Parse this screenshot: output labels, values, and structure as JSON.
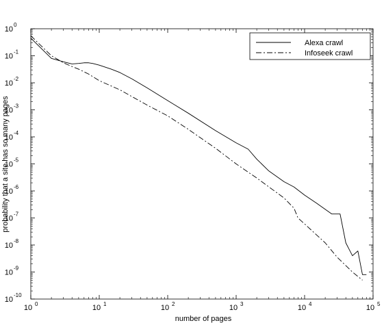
{
  "chart_data": {
    "type": "line",
    "xscale": "log",
    "yscale": "log",
    "xlim": [
      1,
      100000
    ],
    "ylim": [
      1e-10,
      1
    ],
    "xlabel": "number of pages",
    "ylabel": "probability that a site has so many pages",
    "x_tick_exponents": [
      "0",
      "1",
      "2",
      "3",
      "4",
      "5"
    ],
    "y_tick_exponents": [
      "0",
      "-1",
      "-2",
      "-3",
      "-4",
      "-5",
      "-6",
      "-7",
      "-8",
      "-9",
      "-10"
    ],
    "tick_base": "10",
    "grid": false,
    "legend_position": "top-right",
    "series": [
      {
        "name": "Alexa crawl",
        "line_style": "solid",
        "color": "#000000",
        "points": [
          [
            1,
            0.45
          ],
          [
            2,
            0.08
          ],
          [
            3,
            0.06
          ],
          [
            4,
            0.05
          ],
          [
            5,
            0.052
          ],
          [
            6,
            0.055
          ],
          [
            7,
            0.055
          ],
          [
            8,
            0.052
          ],
          [
            10,
            0.045
          ],
          [
            15,
            0.032
          ],
          [
            20,
            0.024
          ],
          [
            30,
            0.014
          ],
          [
            50,
            0.0065
          ],
          [
            100,
            0.0022
          ],
          [
            200,
            0.00075
          ],
          [
            500,
            0.00017
          ],
          [
            1000,
            6e-05
          ],
          [
            1500,
            3.5e-05
          ],
          [
            2000,
            1.5e-05
          ],
          [
            3000,
            5.5e-06
          ],
          [
            5000,
            2.2e-06
          ],
          [
            7000,
            1.4e-06
          ],
          [
            10000,
            7e-07
          ],
          [
            15000,
            3.5e-07
          ],
          [
            25000,
            1.4e-07
          ],
          [
            33000,
            1.4e-07
          ],
          [
            40000,
            1.2e-08
          ],
          [
            50000,
            4e-09
          ],
          [
            60000,
            6e-09
          ],
          [
            70000,
            8e-10
          ],
          [
            80000,
            8e-10
          ]
        ]
      },
      {
        "name": "Infoseek crawl",
        "line_style": "dash-dot",
        "color": "#000000",
        "points": [
          [
            1,
            0.55
          ],
          [
            2,
            0.1
          ],
          [
            3,
            0.055
          ],
          [
            4,
            0.04
          ],
          [
            5,
            0.032
          ],
          [
            7,
            0.021
          ],
          [
            10,
            0.012
          ],
          [
            20,
            0.0055
          ],
          [
            50,
            0.0015
          ],
          [
            100,
            0.0006
          ],
          [
            200,
            0.00019
          ],
          [
            500,
            3.8e-05
          ],
          [
            1000,
            1e-05
          ],
          [
            2000,
            3e-06
          ],
          [
            5000,
            5.5e-07
          ],
          [
            7000,
            2.3e-07
          ],
          [
            8000,
            1e-07
          ],
          [
            10000,
            6e-08
          ],
          [
            20000,
            1.2e-08
          ],
          [
            30000,
            3.5e-09
          ],
          [
            50000,
            1e-09
          ],
          [
            70000,
            5e-10
          ]
        ]
      }
    ]
  }
}
